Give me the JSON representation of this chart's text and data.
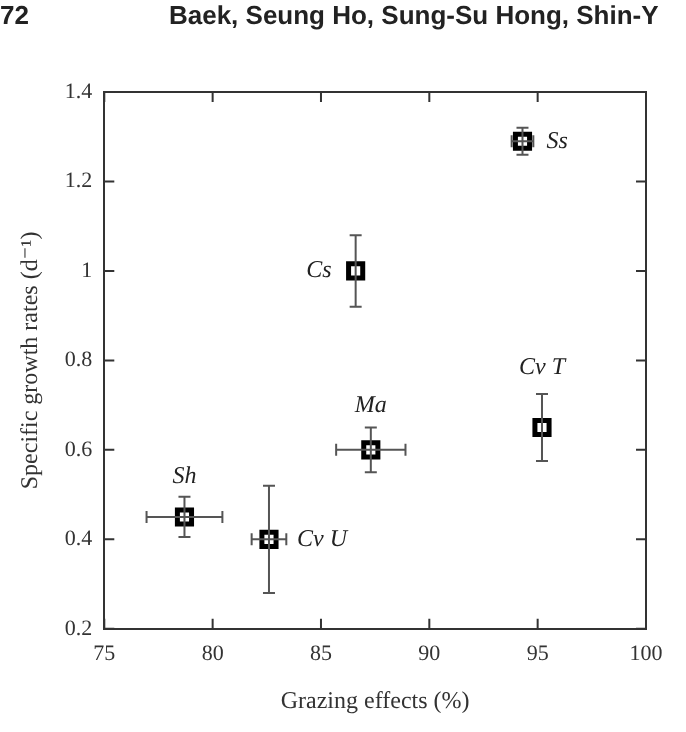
{
  "chart_data": {
    "type": "scatter",
    "xlabel": "Grazing effects (%)",
    "ylabel": "Specific growth rates (d⁻¹)",
    "x": [
      94.3,
      86.6,
      87.3,
      95.2,
      78.7,
      82.6
    ],
    "values": [
      1.29,
      1.0,
      0.6,
      0.65,
      0.45,
      0.4
    ],
    "errors": [
      0.03,
      0.08,
      0.05,
      0.075,
      0.045,
      0.12
    ],
    "xerrors": [
      0.5,
      null,
      1.6,
      null,
      1.75,
      0.8
    ],
    "color": "#000000",
    "marker": "square",
    "grid": false,
    "xlim": [
      75,
      100
    ],
    "xticks": [
      75,
      80,
      85,
      90,
      95,
      100
    ],
    "ylim": [
      0.2,
      1.4
    ],
    "yticks": [
      0.2,
      0.4,
      0.6,
      0.8,
      1,
      1.2,
      1.4
    ],
    "annotations": [
      "72",
      "Baek, Seung Ho, Sung-Su Hong, Shin-Y",
      {
        "text": "Ss",
        "x": 94.3,
        "y": 1.29
      },
      {
        "text": "Cs",
        "x": 86.6,
        "y": 1.0
      },
      {
        "text": "Ma",
        "x": 87.3,
        "y": 0.6
      },
      {
        "text": "Cv T",
        "x": 95.2,
        "y": 0.65
      },
      {
        "text": "Sh",
        "x": 78.7,
        "y": 0.45
      },
      {
        "text": "Cv U",
        "x": 82.6,
        "y": 0.4
      }
    ]
  }
}
